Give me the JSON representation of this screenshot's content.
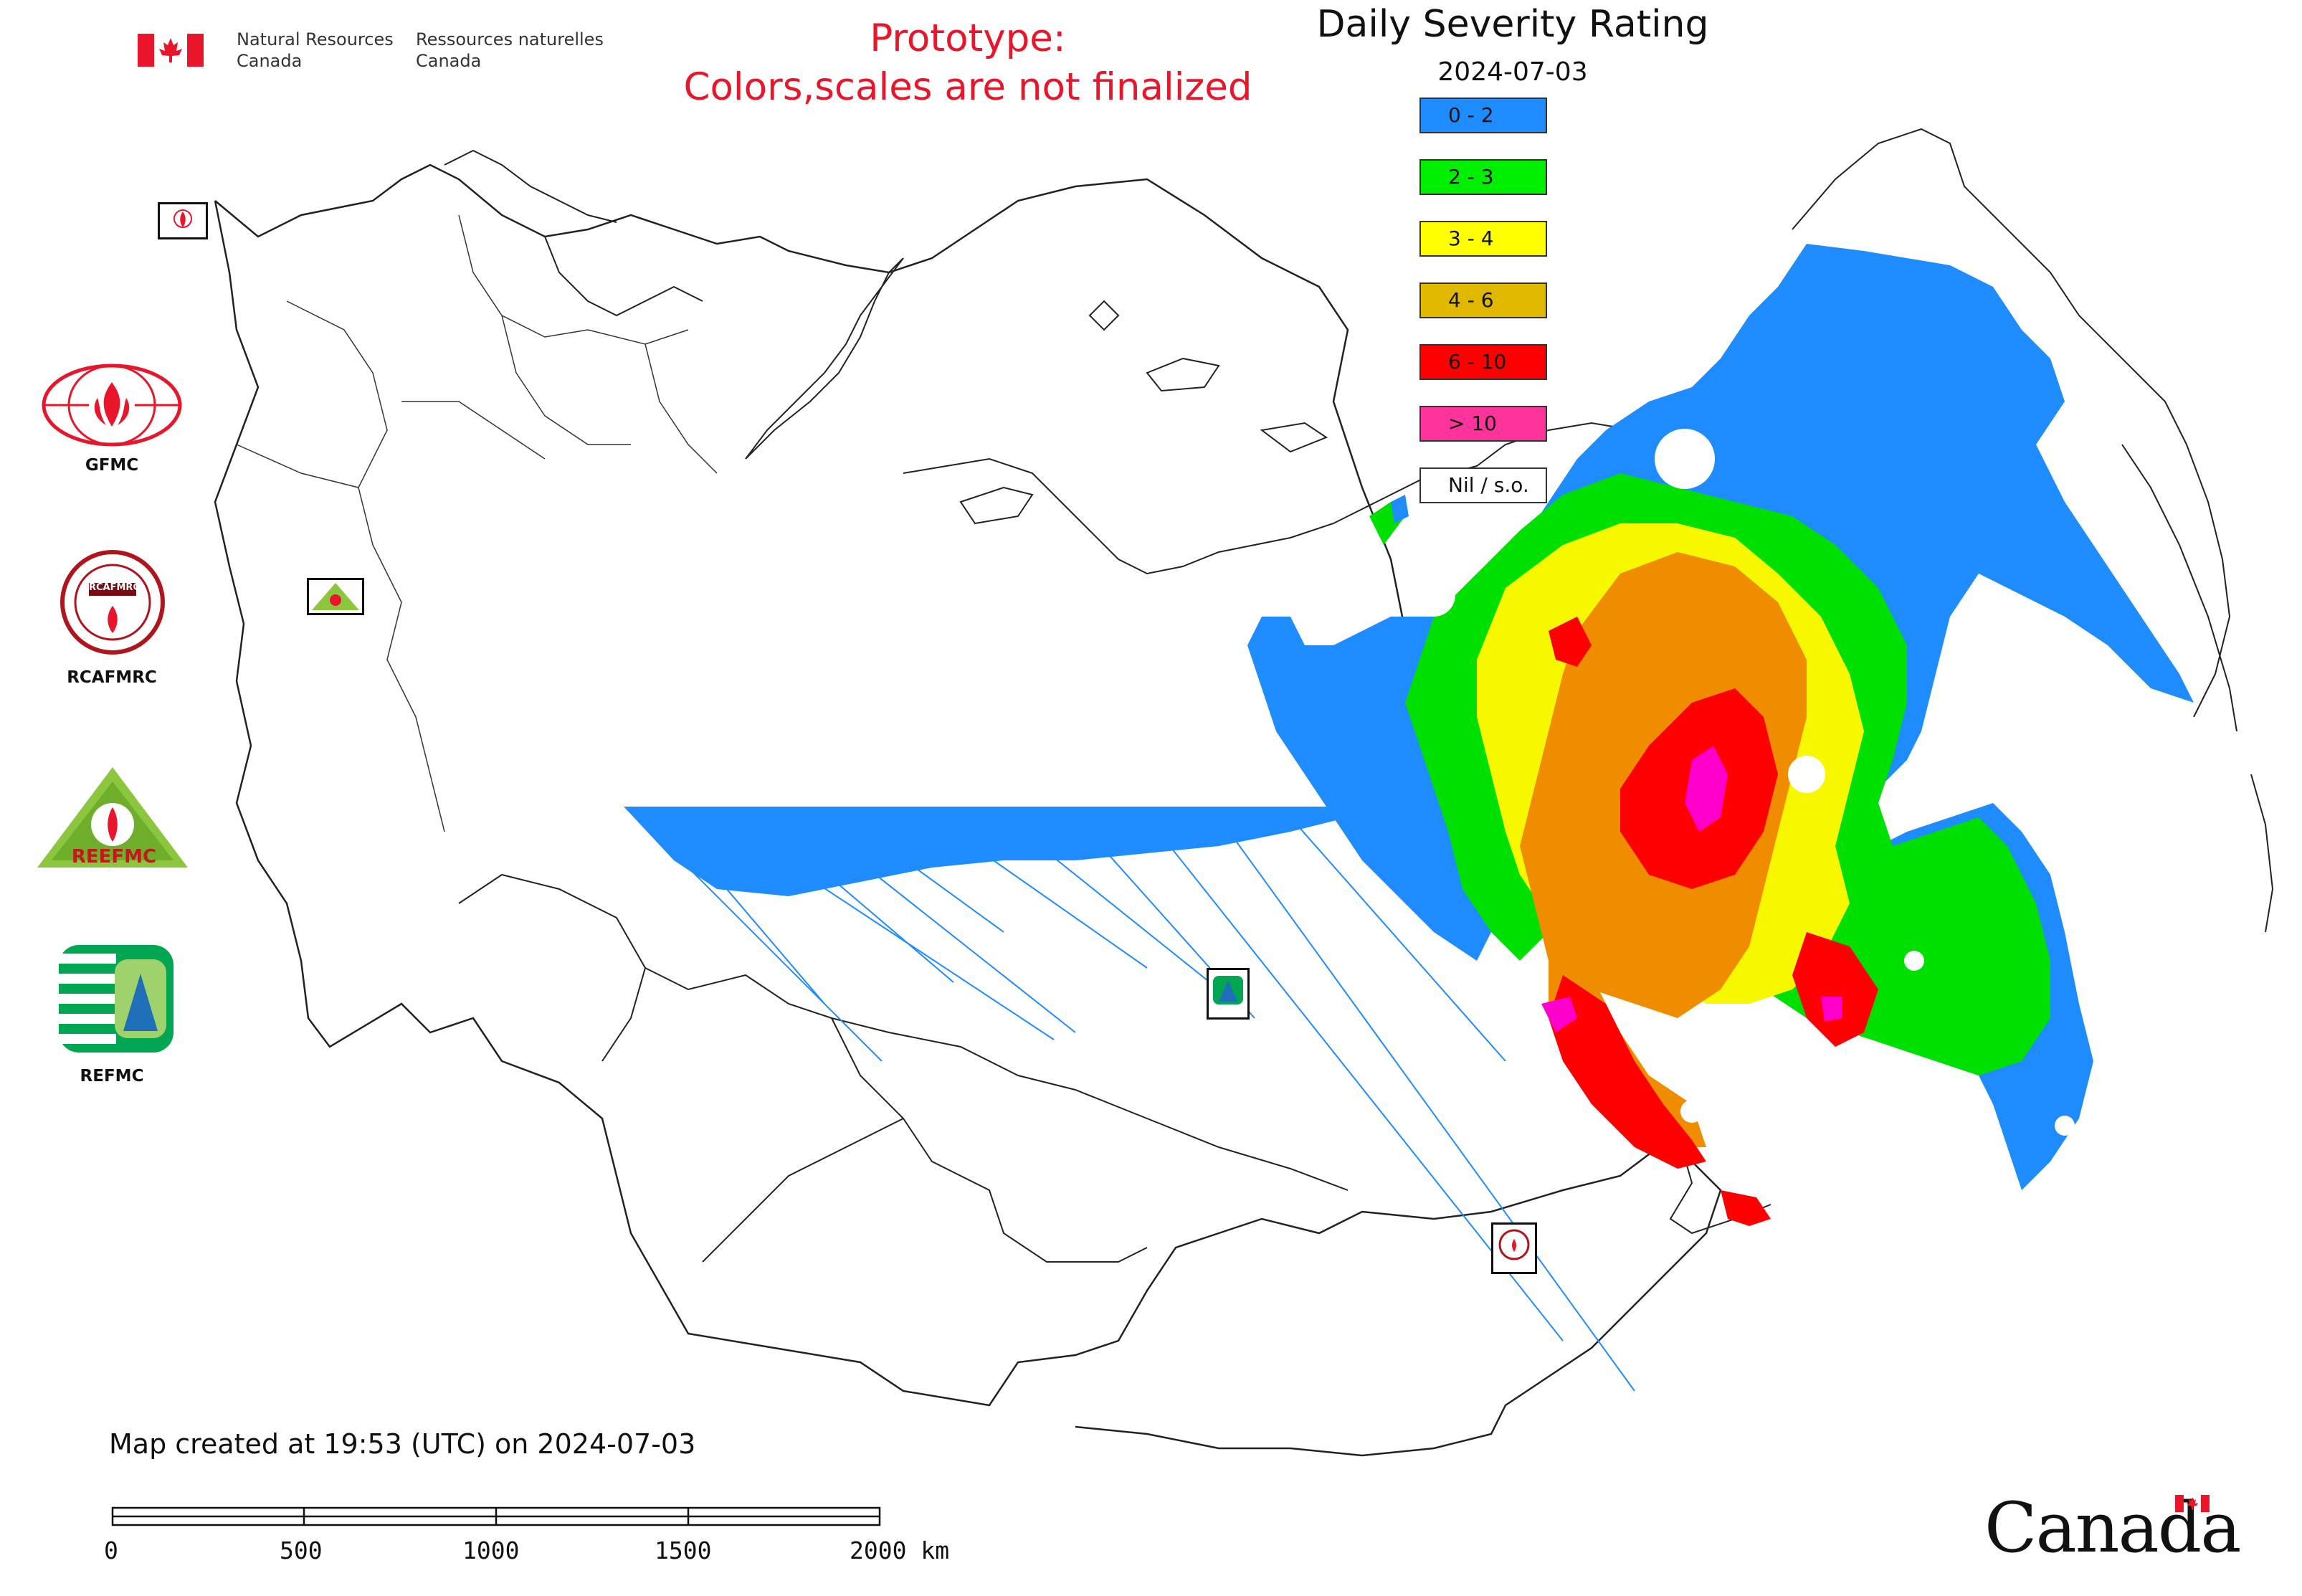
{
  "header": {
    "dept_en_line1": "Natural Resources",
    "dept_en_line2": "Canada",
    "dept_fr_line1": "Ressources naturelles",
    "dept_fr_line2": "Canada",
    "prototype_line1": "Prototype:",
    "prototype_line2": "Colors,scales are not finalized"
  },
  "map": {
    "title": "Daily Severity Rating",
    "date": "2024-07-03",
    "legend": [
      {
        "label": "0 - 2",
        "color": "#1e8cff"
      },
      {
        "label": "2 - 3",
        "color": "#00ee00"
      },
      {
        "label": "3 - 4",
        "color": "#ffff00"
      },
      {
        "label": "4 - 6",
        "color": "#e0b800"
      },
      {
        "label": "6 - 10",
        "color": "#ff0000"
      },
      {
        "label": "> 10",
        "color": "#ff3399"
      },
      {
        "label": "Nil / s.o.",
        "color": "#ffffff"
      }
    ]
  },
  "logos": {
    "gfmc": "GFMC",
    "rcafmrc": "RCAFMRC",
    "reefmc": "REEFMC",
    "refmc": "REFMC",
    "reefmc_logo_text": "REEFMC",
    "rcafmrc_logo_text": "RCAFMRC"
  },
  "footer": {
    "created": "Map created at 19:53 (UTC) on 2024-07-03",
    "scale_labels": [
      "0",
      "500",
      "1000",
      "1500",
      "2000 km"
    ],
    "wordmark": "Canada"
  }
}
